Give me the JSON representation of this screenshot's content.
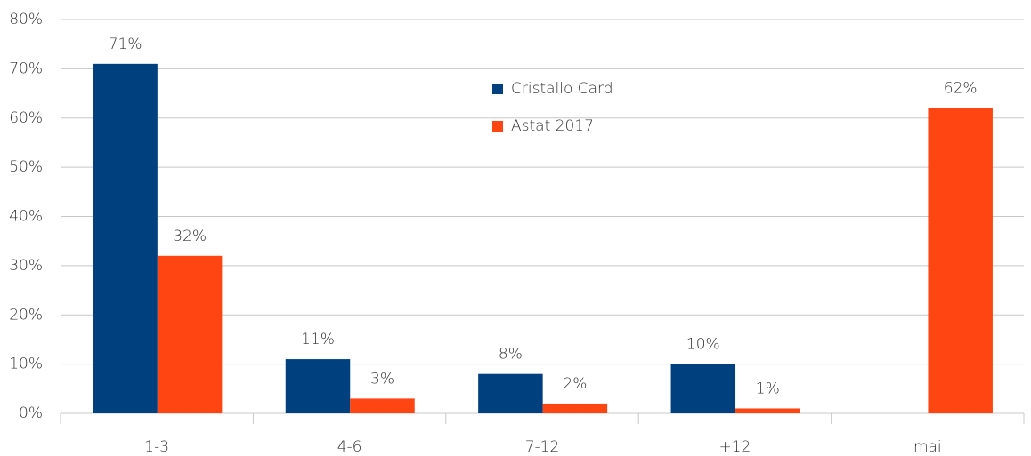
{
  "chart_data": {
    "type": "bar",
    "categories": [
      "1-3",
      "4-6",
      "7-12",
      "+12",
      "mai"
    ],
    "series": [
      {
        "name": "Cristallo Card",
        "color": "#00407f",
        "values": [
          71,
          11,
          8,
          10,
          null
        ],
        "value_labels": [
          "71%",
          "11%",
          "8%",
          "10%",
          null
        ]
      },
      {
        "name": "Astat 2017",
        "color": "#ff4511",
        "values": [
          32,
          3,
          2,
          1,
          62
        ],
        "value_labels": [
          "32%",
          "3%",
          "2%",
          "1%",
          "62%"
        ]
      }
    ],
    "ylim": [
      0,
      80
    ],
    "yticks": [
      {
        "value": 0,
        "label": "0%"
      },
      {
        "value": 10,
        "label": "10%"
      },
      {
        "value": 20,
        "label": "20%"
      },
      {
        "value": 30,
        "label": "30%"
      },
      {
        "value": 40,
        "label": "40%"
      },
      {
        "value": 50,
        "label": "50%"
      },
      {
        "value": 60,
        "label": "60%"
      },
      {
        "value": 70,
        "label": "70%"
      },
      {
        "value": 80,
        "label": "80%"
      }
    ],
    "grid": true,
    "legend": "top"
  }
}
